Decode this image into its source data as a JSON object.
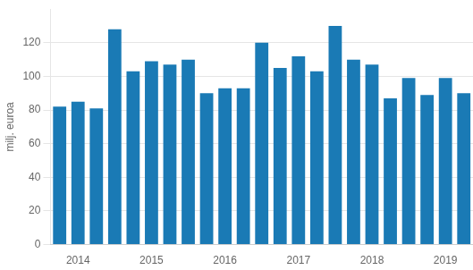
{
  "chart_data": {
    "type": "bar",
    "categories": [
      null,
      "2014",
      null,
      null,
      null,
      "2015",
      null,
      null,
      null,
      "2016",
      null,
      null,
      null,
      "2017",
      null,
      null,
      null,
      "2018",
      null,
      null,
      null,
      "2019",
      null
    ],
    "values": [
      82,
      85,
      81,
      128,
      103,
      109,
      107,
      110,
      90,
      93,
      93,
      120,
      105,
      112,
      103,
      130,
      110,
      107,
      87,
      99,
      89,
      99,
      90
    ],
    "color": "#1a7ab5",
    "ylabel": "milj. euroa",
    "ylim": [
      0,
      140
    ],
    "yticks": [
      0,
      20,
      40,
      60,
      80,
      100,
      120
    ],
    "grid": true
  }
}
